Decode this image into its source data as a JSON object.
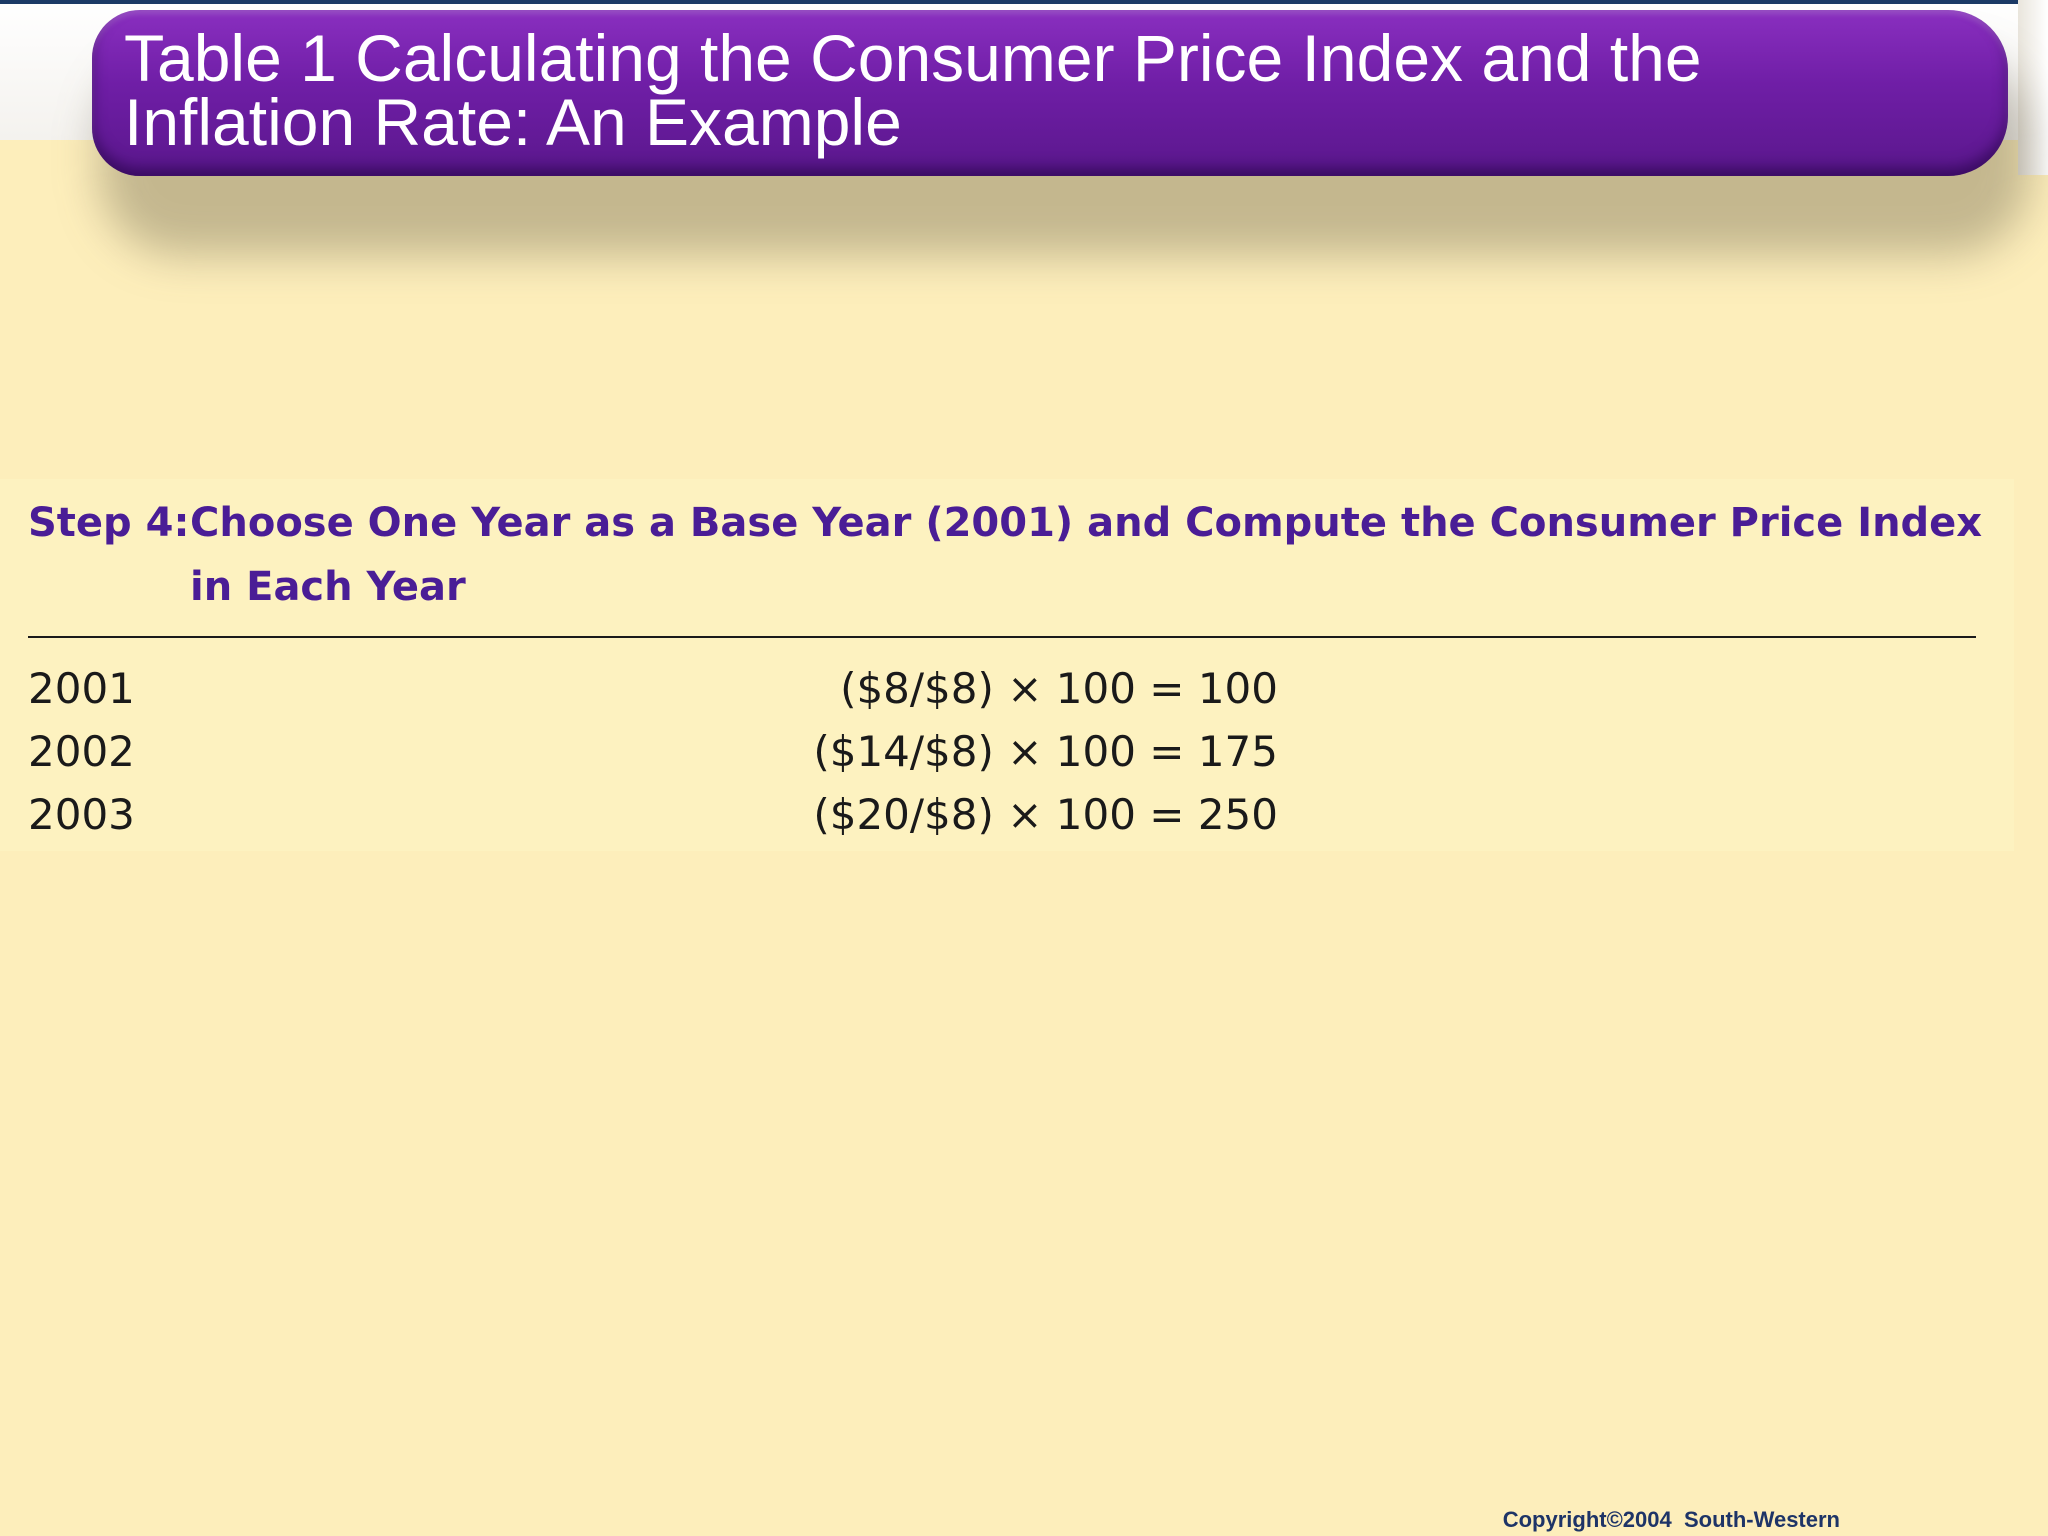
{
  "slide": {
    "title": "Table 1 Calculating the Consumer Price Index and the Inflation Rate: An Example"
  },
  "table": {
    "step_label": "Step 4:",
    "step_title_line1": "Choose One Year as a Base Year (2001) and Compute the Consumer Price Index",
    "step_title_line2": "in Each Year",
    "rows": [
      {
        "year": "2001",
        "formula": "($8/$8) × 100 = 100"
      },
      {
        "year": "2002",
        "formula": "($14/$8) × 100 = 175"
      },
      {
        "year": "2003",
        "formula": "($20/$8) × 100 = 250"
      }
    ]
  },
  "footer": {
    "copyright": "Copyright©2004  South-Western"
  }
}
